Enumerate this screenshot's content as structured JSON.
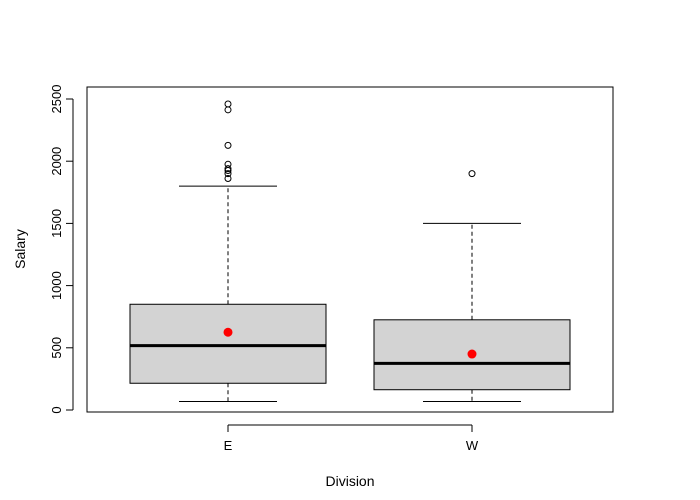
{
  "chart_data": {
    "type": "box",
    "xlabel": "Division",
    "ylabel": "Salary",
    "ylim": [
      0,
      2500
    ],
    "yticks": [
      0,
      500,
      1000,
      1500,
      2000,
      2500
    ],
    "grid": false,
    "categories": [
      "E",
      "W"
    ],
    "boxes": [
      {
        "category": "E",
        "whisker_low": 68,
        "q1": 215,
        "median": 517,
        "q3": 850,
        "whisker_high": 1800,
        "mean": 625,
        "outliers": [
          1861,
          1900,
          1925,
          1940,
          1975,
          2127,
          2413,
          2460
        ]
      },
      {
        "category": "W",
        "whisker_low": 68,
        "q1": 163,
        "median": 375,
        "q3": 725,
        "whisker_high": 1500,
        "mean": 450,
        "outliers": [
          1900
        ]
      }
    ],
    "colors": {
      "box_fill": "#d3d3d3",
      "mean_point": "#ff0000",
      "line": "#000000"
    }
  }
}
